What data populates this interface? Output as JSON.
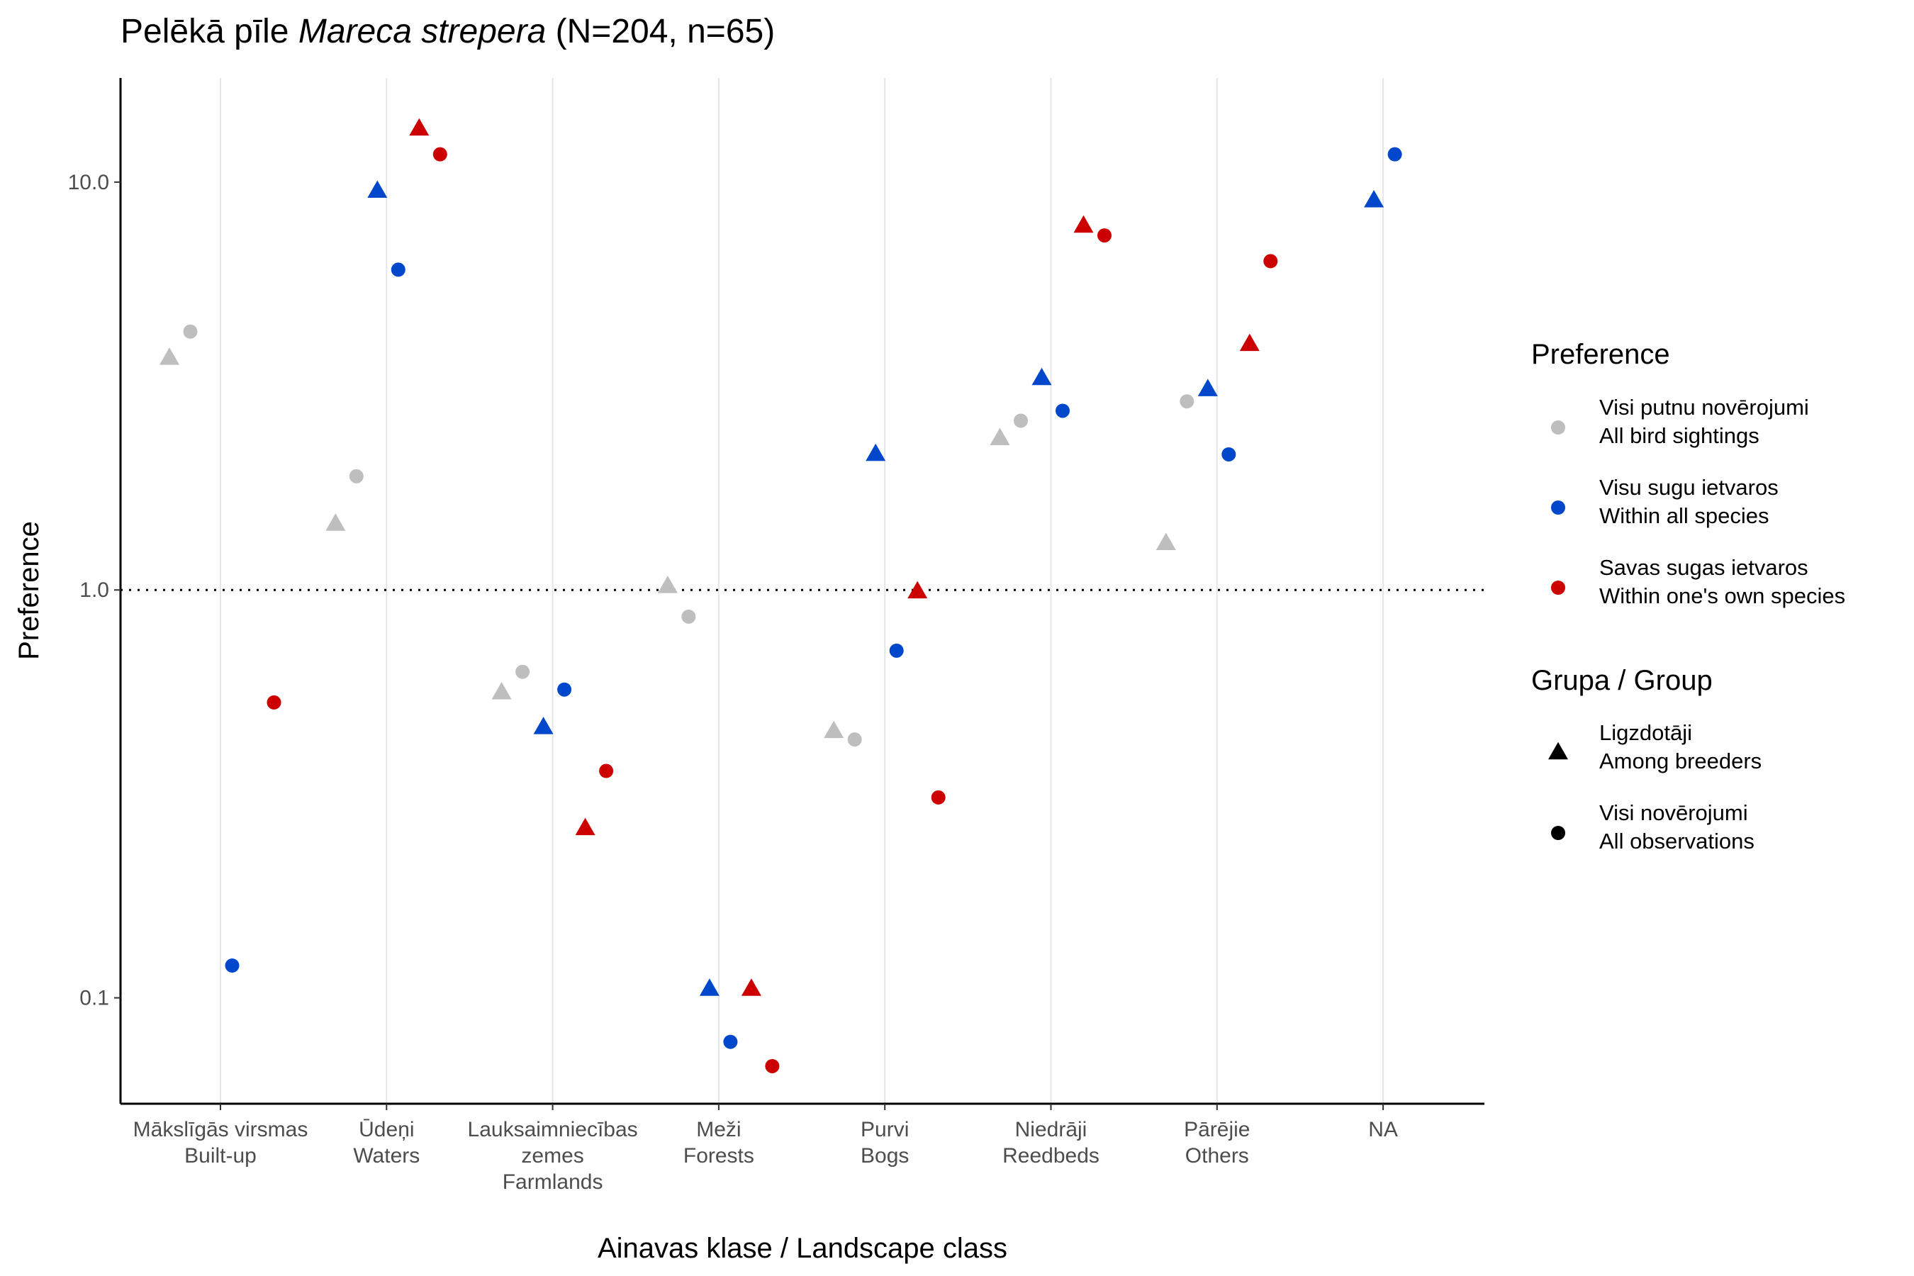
{
  "chart_data": {
    "type": "scatter",
    "title_parts": {
      "prefix": "Pelēkā pīle ",
      "species": "Mareca strepera",
      "suffix": " (N=204, n=65)"
    },
    "xlabel": "Ainavas klase / Landscape class",
    "ylabel": "Preference",
    "y_scale": "log10",
    "ylim": [
      0.055,
      18
    ],
    "y_ticks": [
      "0.1",
      "1.0",
      "10.0"
    ],
    "y_tick_values": [
      0.1,
      1.0,
      10.0
    ],
    "reference_line": 1.0,
    "categories": [
      [
        "Mākslīgās virsmas",
        "Built-up"
      ],
      [
        "Ūdeņi",
        "Waters"
      ],
      [
        "Lauksaimniecības",
        "zemes",
        "Farmlands"
      ],
      [
        "Meži",
        "Forests"
      ],
      [
        "Purvi",
        "Bogs"
      ],
      [
        "Niedrāji",
        "Reedbeds"
      ],
      [
        "Pārējie",
        "Others"
      ],
      [
        "NA"
      ]
    ],
    "preference_legend": {
      "title": "Preference",
      "items": [
        {
          "key": "all_sightings",
          "line1": "Visi putnu novērojumi",
          "line2": "All bird sightings",
          "color": "#BEBEBE"
        },
        {
          "key": "within_all_species",
          "line1": "Visu sugu ietvaros",
          "line2": "Within all species",
          "color": "#0047CC"
        },
        {
          "key": "within_own_species",
          "line1": "Savas sugas ietvaros",
          "line2": "Within one's own species",
          "color": "#CC0000"
        }
      ]
    },
    "group_legend": {
      "title": "Grupa / Group",
      "items": [
        {
          "key": "breeders",
          "line1": "Ligzdotāji",
          "line2": "Among breeders",
          "shape": "triangle"
        },
        {
          "key": "all_obs",
          "line1": "Visi novērojumi",
          "line2": "All observations",
          "shape": "circle"
        }
      ]
    },
    "series": [
      {
        "preference": "all_sightings",
        "group": "breeders",
        "values": [
          3.7,
          1.45,
          0.56,
          1.02,
          0.45,
          2.35,
          1.3,
          null
        ]
      },
      {
        "preference": "all_sightings",
        "group": "all_obs",
        "values": [
          4.3,
          1.9,
          0.63,
          0.86,
          0.43,
          2.6,
          2.9,
          null
        ]
      },
      {
        "preference": "within_all_species",
        "group": "breeders",
        "values": [
          null,
          9.5,
          0.46,
          0.105,
          2.15,
          3.3,
          3.1,
          9.0
        ]
      },
      {
        "preference": "within_all_species",
        "group": "all_obs",
        "values": [
          0.12,
          6.1,
          0.57,
          0.078,
          0.71,
          2.75,
          2.15,
          11.7
        ]
      },
      {
        "preference": "within_own_species",
        "group": "breeders",
        "values": [
          null,
          13.5,
          0.26,
          0.105,
          0.99,
          7.8,
          4.0,
          null
        ]
      },
      {
        "preference": "within_own_species",
        "group": "all_obs",
        "values": [
          0.53,
          11.7,
          0.36,
          0.068,
          0.31,
          7.4,
          6.4,
          null
        ]
      }
    ]
  }
}
